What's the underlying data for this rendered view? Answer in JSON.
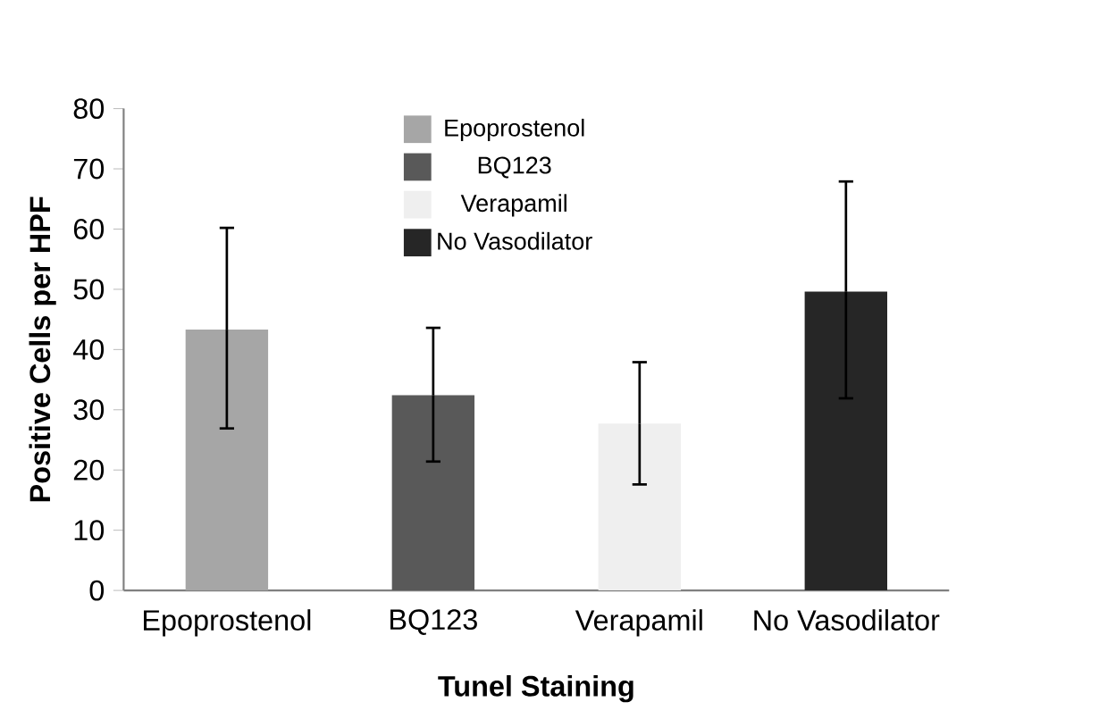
{
  "chart_data": {
    "type": "bar",
    "xlabel": "Tunel Staining",
    "ylabel": "Positive Cells per HPF",
    "categories": [
      "Epoprostenol",
      "BQ123",
      "Verapamil",
      "No Vasodilator"
    ],
    "series": [
      {
        "name": "Epoprostenol",
        "color": "#a6a6a6",
        "values": [
          43.3,
          null,
          null,
          null
        ],
        "errors": [
          [
            26.9,
            60.2
          ],
          null,
          null,
          null
        ]
      },
      {
        "name": "BQ123",
        "color": "#595959",
        "values": [
          null,
          32.4,
          null,
          null
        ],
        "errors": [
          null,
          [
            21.4,
            43.6
          ],
          null,
          null
        ]
      },
      {
        "name": "Verapamil",
        "color": "#efefef",
        "values": [
          null,
          null,
          27.7,
          null
        ],
        "errors": [
          null,
          null,
          [
            17.6,
            37.9
          ],
          null
        ]
      },
      {
        "name": "No Vasodilator",
        "color": "#262626",
        "values": [
          null,
          null,
          null,
          49.6
        ],
        "errors": [
          null,
          null,
          null,
          [
            31.9,
            67.9
          ]
        ]
      }
    ],
    "ylim": [
      0,
      80
    ],
    "yticks": [
      0,
      10,
      20,
      30,
      40,
      50,
      60,
      70,
      80
    ],
    "grid": false,
    "legend": "top left"
  }
}
